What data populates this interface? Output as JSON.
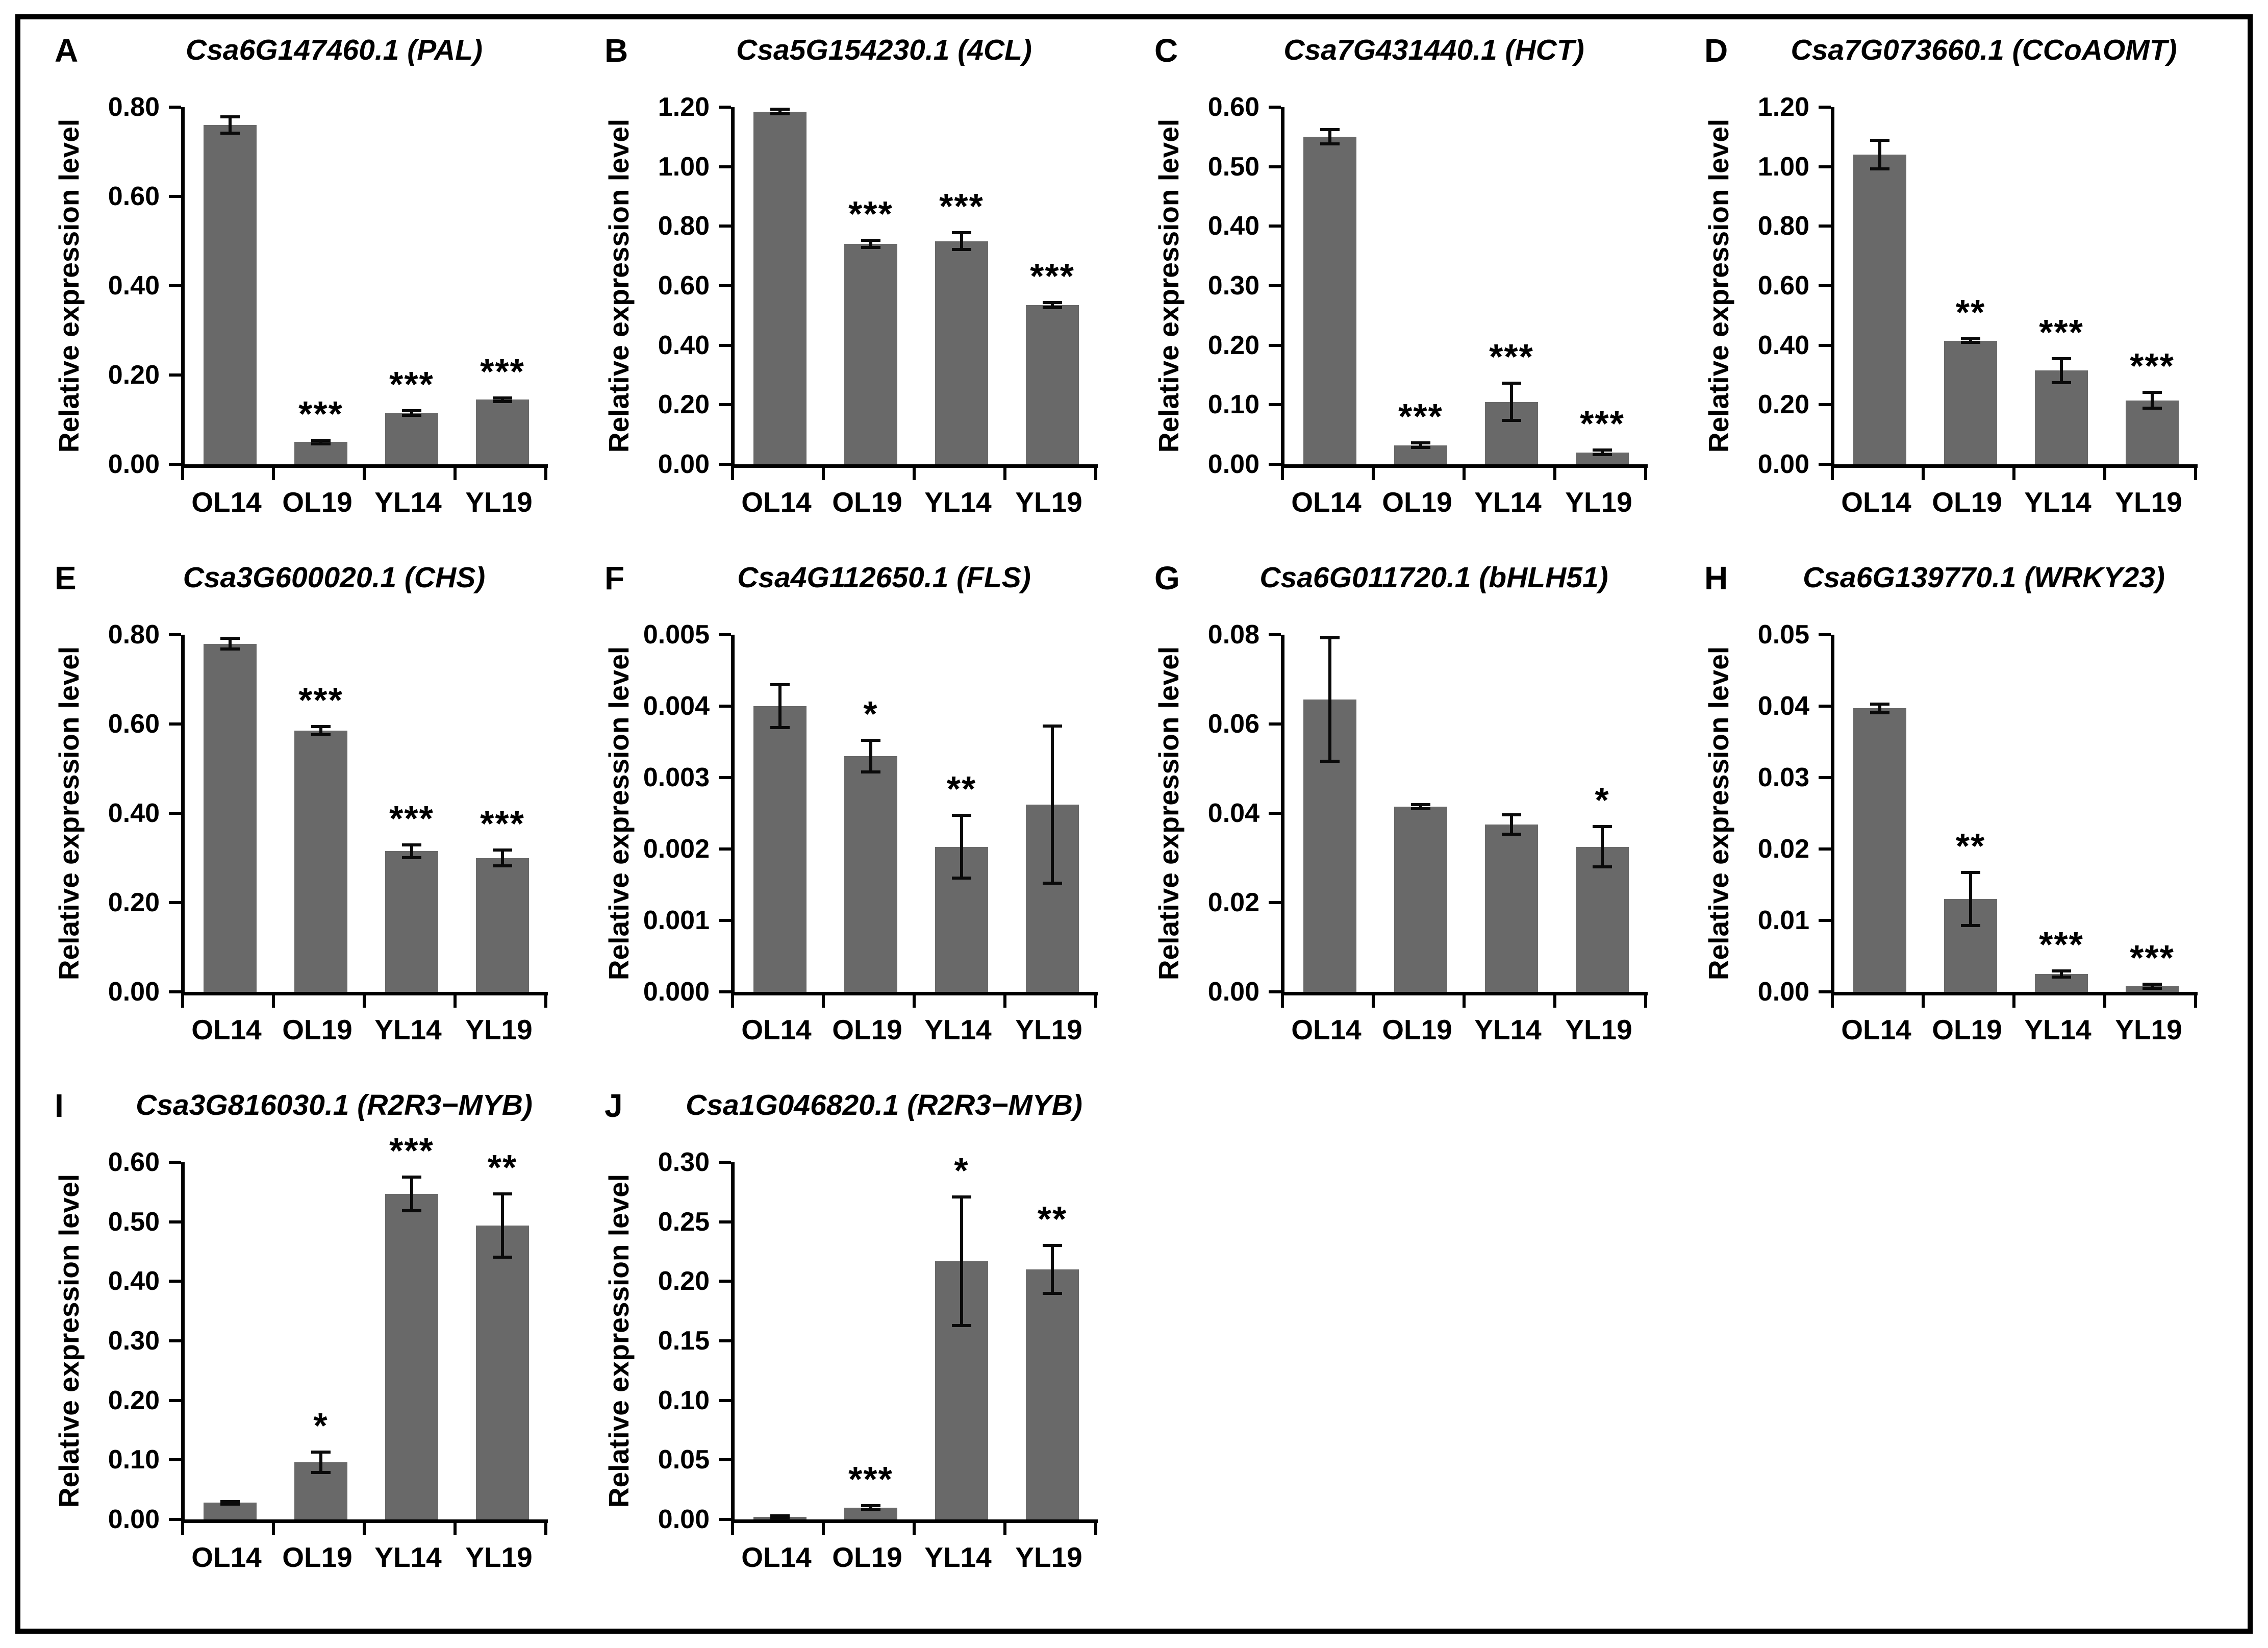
{
  "figure": {
    "ylabel": "Relative expression level",
    "categories": [
      "OL14",
      "OL19",
      "YL14",
      "YL19"
    ],
    "bar_color": "#696969",
    "axis_color": "#000000",
    "background_color": "#ffffff",
    "border_color": "#000000"
  },
  "chart_data": [
    {
      "type": "bar",
      "panel": "A",
      "title": "Csa6G147460.1 (PAL)",
      "xlabel": "",
      "ylabel": "Relative expression level",
      "categories": [
        "OL14",
        "OL19",
        "YL14",
        "YL19"
      ],
      "values": [
        0.76,
        0.05,
        0.115,
        0.145
      ],
      "errors": [
        0.018,
        0.004,
        0.005,
        0.004
      ],
      "significance": [
        "",
        "***",
        "***",
        "***"
      ],
      "ylim": [
        0,
        0.8
      ],
      "ytick_labels": [
        "0.00",
        "0.20",
        "0.40",
        "0.60",
        "0.80"
      ],
      "grid": false,
      "legend": "none"
    },
    {
      "type": "bar",
      "panel": "B",
      "title": "Csa5G154230.1 (4CL)",
      "xlabel": "",
      "ylabel": "Relative expression level",
      "categories": [
        "OL14",
        "OL19",
        "YL14",
        "YL19"
      ],
      "values": [
        1.185,
        0.74,
        0.75,
        0.535
      ],
      "errors": [
        0.008,
        0.012,
        0.028,
        0.008
      ],
      "significance": [
        "",
        "***",
        "***",
        "***"
      ],
      "ylim": [
        0,
        1.2
      ],
      "ytick_labels": [
        "0.00",
        "0.20",
        "0.40",
        "0.60",
        "0.80",
        "1.00",
        "1.20"
      ],
      "grid": false,
      "legend": "none"
    },
    {
      "type": "bar",
      "panel": "C",
      "title": "Csa7G431440.1 (HCT)",
      "xlabel": "",
      "ylabel": "Relative expression level",
      "categories": [
        "OL14",
        "OL19",
        "YL14",
        "YL19"
      ],
      "values": [
        0.55,
        0.032,
        0.105,
        0.02
      ],
      "errors": [
        0.012,
        0.004,
        0.031,
        0.004
      ],
      "significance": [
        "",
        "***",
        "***",
        "***"
      ],
      "ylim": [
        0,
        0.6
      ],
      "ytick_labels": [
        "0.00",
        "0.10",
        "0.20",
        "0.30",
        "0.40",
        "0.50",
        "0.60"
      ],
      "grid": false,
      "legend": "none"
    },
    {
      "type": "bar",
      "panel": "D",
      "title": "Csa7G073660.1 (CCoAOMT)",
      "xlabel": "",
      "ylabel": "Relative expression level",
      "categories": [
        "OL14",
        "OL19",
        "YL14",
        "YL19"
      ],
      "values": [
        1.04,
        0.415,
        0.315,
        0.215
      ],
      "errors": [
        0.048,
        0.006,
        0.04,
        0.026
      ],
      "significance": [
        "",
        "**",
        "***",
        "***"
      ],
      "ylim": [
        0,
        1.2
      ],
      "ytick_labels": [
        "0.00",
        "0.20",
        "0.40",
        "0.60",
        "0.80",
        "1.00",
        "1.20"
      ],
      "grid": false,
      "legend": "none"
    },
    {
      "type": "bar",
      "panel": "E",
      "title": "Csa3G600020.1 (CHS)",
      "xlabel": "",
      "ylabel": "Relative expression level",
      "categories": [
        "OL14",
        "OL19",
        "YL14",
        "YL19"
      ],
      "values": [
        0.78,
        0.585,
        0.315,
        0.3
      ],
      "errors": [
        0.012,
        0.009,
        0.014,
        0.018
      ],
      "significance": [
        "",
        "***",
        "***",
        "***"
      ],
      "ylim": [
        0,
        0.8
      ],
      "ytick_labels": [
        "0.00",
        "0.20",
        "0.40",
        "0.60",
        "0.80"
      ],
      "grid": false,
      "legend": "none"
    },
    {
      "type": "bar",
      "panel": "F",
      "title": "Csa4G112650.1 (FLS)",
      "xlabel": "",
      "ylabel": "Relative expression level",
      "categories": [
        "OL14",
        "OL19",
        "YL14",
        "YL19"
      ],
      "values": [
        0.004,
        0.0033,
        0.00203,
        0.00262
      ],
      "errors": [
        0.0003,
        0.00022,
        0.00044,
        0.0011
      ],
      "significance": [
        "",
        "*",
        "**",
        ""
      ],
      "ylim": [
        0,
        0.005
      ],
      "ytick_labels": [
        "0.000",
        "0.001",
        "0.002",
        "0.003",
        "0.004",
        "0.005"
      ],
      "grid": false,
      "legend": "none"
    },
    {
      "type": "bar",
      "panel": "G",
      "title": "Csa6G011720.1 (bHLH51)",
      "xlabel": "",
      "ylabel": "Relative expression level",
      "categories": [
        "OL14",
        "OL19",
        "YL14",
        "YL19"
      ],
      "values": [
        0.0655,
        0.0415,
        0.0375,
        0.0325
      ],
      "errors": [
        0.0138,
        0.0005,
        0.0022,
        0.0045
      ],
      "significance": [
        "",
        "",
        "",
        "*"
      ],
      "ylim": [
        0,
        0.08
      ],
      "ytick_labels": [
        "0.00",
        "0.02",
        "0.04",
        "0.06",
        "0.08"
      ],
      "grid": false,
      "legend": "none"
    },
    {
      "type": "bar",
      "panel": "H",
      "title": "Csa6G139770.1 (WRKY23)",
      "xlabel": "",
      "ylabel": "Relative expression level",
      "categories": [
        "OL14",
        "OL19",
        "YL14",
        "YL19"
      ],
      "values": [
        0.0397,
        0.013,
        0.0025,
        0.0008
      ],
      "errors": [
        0.0006,
        0.0037,
        0.0004,
        0.0003
      ],
      "significance": [
        "",
        "**",
        "***",
        "***"
      ],
      "ylim": [
        0,
        0.05
      ],
      "ytick_labels": [
        "0.00",
        "0.01",
        "0.02",
        "0.03",
        "0.04",
        "0.05"
      ],
      "grid": false,
      "legend": "none"
    },
    {
      "type": "bar",
      "panel": "I",
      "title": "Csa3G816030.1 (R2R3−MYB)",
      "xlabel": "",
      "ylabel": "Relative expression level",
      "categories": [
        "OL14",
        "OL19",
        "YL14",
        "YL19"
      ],
      "values": [
        0.028,
        0.096,
        0.547,
        0.494
      ],
      "errors": [
        0.002,
        0.017,
        0.028,
        0.053
      ],
      "significance": [
        "",
        "*",
        "***",
        "**"
      ],
      "ylim": [
        0,
        0.6
      ],
      "ytick_labels": [
        "0.00",
        "0.10",
        "0.20",
        "0.30",
        "0.40",
        "0.50",
        "0.60"
      ],
      "grid": false,
      "legend": "none"
    },
    {
      "type": "bar",
      "panel": "J",
      "title": "Csa1G046820.1 (R2R3−MYB)",
      "xlabel": "",
      "ylabel": "Relative expression level",
      "categories": [
        "OL14",
        "OL19",
        "YL14",
        "YL19"
      ],
      "values": [
        0.002,
        0.01,
        0.217,
        0.21
      ],
      "errors": [
        0.001,
        0.0015,
        0.054,
        0.02
      ],
      "significance": [
        "",
        "***",
        "*",
        "**"
      ],
      "ylim": [
        0,
        0.3
      ],
      "ytick_labels": [
        "0.00",
        "0.05",
        "0.10",
        "0.15",
        "0.20",
        "0.25",
        "0.30"
      ],
      "grid": false,
      "legend": "none"
    }
  ]
}
